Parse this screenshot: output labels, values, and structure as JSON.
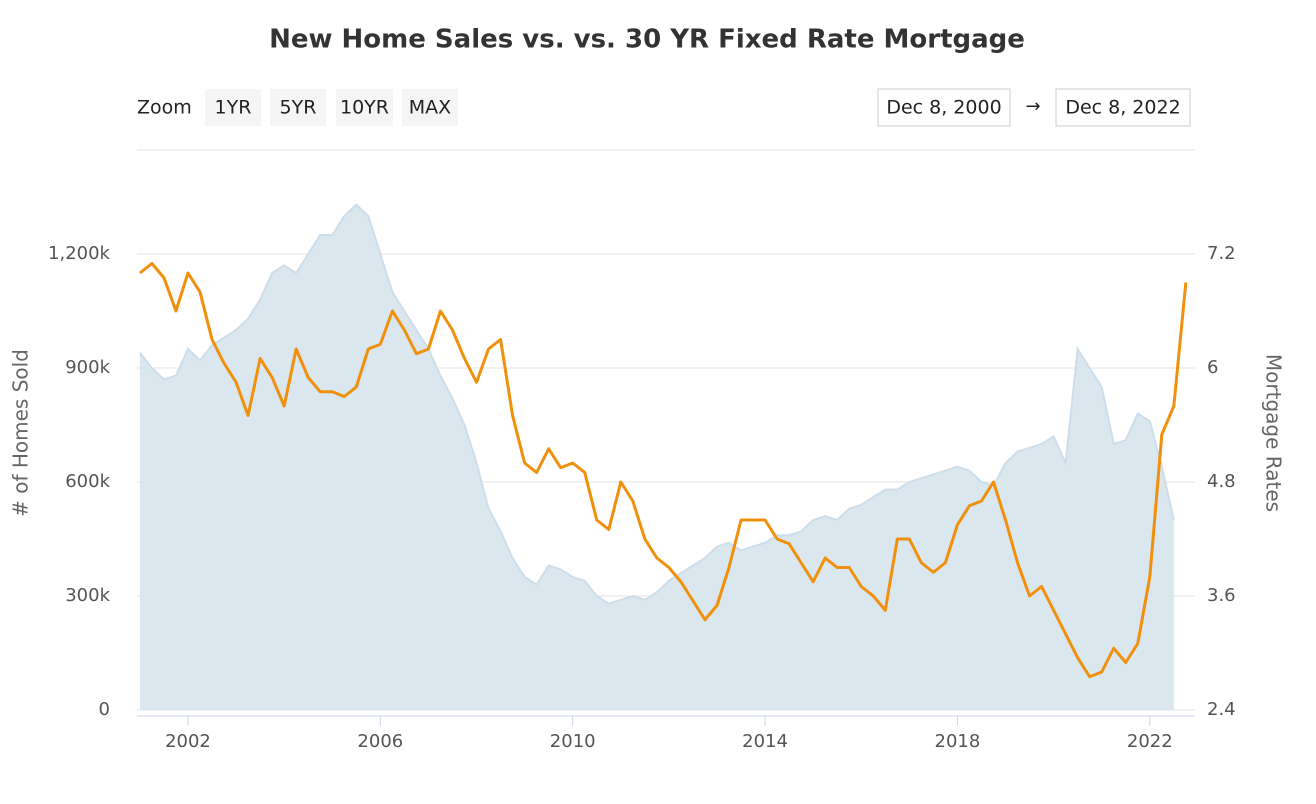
{
  "chart_data": {
    "type": "area-line",
    "title": "New Home Sales vs. vs. 30 YR Fixed Rate Mortgage",
    "zoom_label": "Zoom",
    "zoom_buttons": [
      "1YR",
      "5YR",
      "10YR",
      "MAX"
    ],
    "range_from": "Dec 8, 2000",
    "range_arrow": "→",
    "range_to": "Dec 8, 2022",
    "y_axis_label": "# of Homes Sold",
    "y2_axis_label": "Mortgage Rates",
    "x": [
      2001,
      2001.25,
      2001.5,
      2001.75,
      2002,
      2002.25,
      2002.5,
      2002.75,
      2003,
      2003.25,
      2003.5,
      2003.75,
      2004,
      2004.25,
      2004.5,
      2004.75,
      2005,
      2005.25,
      2005.5,
      2005.75,
      2006,
      2006.25,
      2006.5,
      2006.75,
      2007,
      2007.25,
      2007.5,
      2007.75,
      2008,
      2008.25,
      2008.5,
      2008.75,
      2009,
      2009.25,
      2009.5,
      2009.75,
      2010,
      2010.25,
      2010.5,
      2010.75,
      2011,
      2011.25,
      2011.5,
      2011.75,
      2012,
      2012.25,
      2012.5,
      2012.75,
      2013,
      2013.25,
      2013.5,
      2013.75,
      2014,
      2014.25,
      2014.5,
      2014.75,
      2015,
      2015.25,
      2015.5,
      2015.75,
      2016,
      2016.25,
      2016.5,
      2016.75,
      2017,
      2017.25,
      2017.5,
      2017.75,
      2018,
      2018.25,
      2018.5,
      2018.75,
      2019,
      2019.25,
      2019.5,
      2019.75,
      2020,
      2020.25,
      2020.5,
      2020.75,
      2021,
      2021.25,
      2021.5,
      2021.75,
      2022,
      2022.25,
      2022.5,
      2022.75
    ],
    "series": [
      {
        "name": "# of Homes Sold",
        "kind": "area",
        "color": "#dbe7ef",
        "values": [
          940000,
          900000,
          870000,
          880000,
          950000,
          920000,
          960000,
          980000,
          1000000,
          1030000,
          1080000,
          1150000,
          1170000,
          1150000,
          1200000,
          1250000,
          1250000,
          1300000,
          1330000,
          1300000,
          1200000,
          1100000,
          1050000,
          1000000,
          950000,
          880000,
          820000,
          750000,
          650000,
          530000,
          470000,
          400000,
          350000,
          330000,
          380000,
          370000,
          350000,
          340000,
          300000,
          280000,
          290000,
          300000,
          290000,
          310000,
          340000,
          360000,
          380000,
          400000,
          430000,
          440000,
          420000,
          430000,
          440000,
          460000,
          460000,
          470000,
          500000,
          510000,
          500000,
          530000,
          540000,
          560000,
          580000,
          580000,
          600000,
          610000,
          620000,
          630000,
          640000,
          630000,
          600000,
          590000,
          650000,
          680000,
          690000,
          700000,
          720000,
          650000,
          950000,
          900000,
          850000,
          700000,
          710000,
          780000,
          760000,
          640000,
          500000,
          null
        ]
      },
      {
        "name": "Mortgage Rates",
        "kind": "line",
        "axis": "y2",
        "color": "#f0900c",
        "values": [
          7.0,
          7.1,
          6.95,
          6.6,
          7.0,
          6.8,
          6.3,
          6.05,
          5.85,
          5.5,
          6.1,
          5.9,
          5.6,
          6.2,
          5.9,
          5.75,
          5.75,
          5.7,
          5.8,
          6.2,
          6.25,
          6.6,
          6.4,
          6.15,
          6.2,
          6.6,
          6.4,
          6.1,
          5.85,
          6.2,
          6.3,
          5.5,
          5.0,
          4.9,
          5.15,
          4.95,
          5.0,
          4.9,
          4.4,
          4.3,
          4.8,
          4.6,
          4.2,
          4.0,
          3.9,
          3.75,
          3.55,
          3.35,
          3.5,
          3.9,
          4.4,
          4.4,
          4.4,
          4.2,
          4.15,
          3.95,
          3.75,
          4.0,
          3.9,
          3.9,
          3.7,
          3.6,
          3.45,
          4.2,
          4.2,
          3.95,
          3.85,
          3.95,
          4.35,
          4.55,
          4.6,
          4.8,
          4.4,
          3.95,
          3.6,
          3.7,
          3.45,
          3.2,
          2.95,
          2.75,
          2.8,
          3.05,
          2.9,
          3.1,
          3.8,
          5.3,
          5.6,
          6.9
        ]
      }
    ],
    "xlim": [
      2000.94,
      2022.94
    ],
    "xticks": [
      2002,
      2006,
      2010,
      2014,
      2018,
      2022
    ],
    "ylim": [
      0,
      1500000
    ],
    "yticks": [
      0,
      {
        "value": 300000,
        "label": "300k"
      },
      {
        "value": 600000,
        "label": "600k"
      },
      {
        "value": 900000,
        "label": "900k"
      },
      {
        "value": 1200000,
        "label": "1,200k"
      }
    ],
    "y2lim": [
      2.4,
      8.4
    ],
    "y2ticks": [
      2.4,
      3.6,
      4.8,
      6,
      7.2
    ],
    "grid": true
  }
}
